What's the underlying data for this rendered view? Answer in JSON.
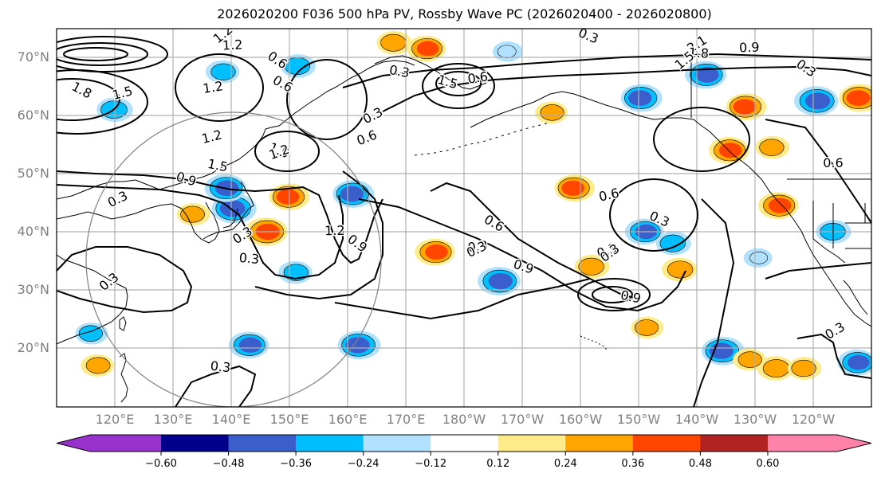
{
  "title": "2026020200 F036 500 hPa PV, Rossby Wave PC (2026020400 - 2026020800)",
  "map": {
    "projection": "PlateCarree",
    "lat_labels": [
      "70°N",
      "60°N",
      "50°N",
      "40°N",
      "30°N",
      "20°N"
    ],
    "lat_values": [
      70,
      60,
      50,
      40,
      30,
      20
    ],
    "lon_labels": [
      "120°E",
      "130°E",
      "140°E",
      "150°E",
      "160°E",
      "170°E",
      "180°W",
      "170°W",
      "160°W",
      "150°W",
      "140°W",
      "130°W",
      "120°W"
    ],
    "lon_values": [
      120,
      130,
      140,
      150,
      160,
      170,
      180,
      190,
      200,
      210,
      220,
      230,
      240
    ],
    "lon_range": [
      110,
      250
    ],
    "lat_range": [
      10,
      75
    ],
    "grid_color": "#b0b0b0",
    "contour_labels": [
      "1.2",
      "1.2",
      "0.6",
      "1.2",
      "1.8",
      "1.5",
      "0.3",
      "0.6",
      "1.5",
      "0.3",
      "0.3",
      "2.1",
      "1.8",
      "1.5",
      "0.9",
      "0.3",
      "0.6",
      "0.6",
      "1.2",
      "1.5",
      "1.2",
      "0.9",
      "0.3",
      "1.5",
      "0.3",
      "0.3",
      "0.3",
      "1.2",
      "0.9",
      "0.3",
      "0.6",
      "0.6",
      "0.3",
      "0.3",
      "0.9",
      "0.3",
      "0.9",
      "0.3",
      "0.3",
      "0.3",
      "0.6"
    ]
  },
  "colorbar": {
    "ticks": [
      "−0.60",
      "−0.48",
      "−0.36",
      "−0.24",
      "−0.12",
      "0.12",
      "0.24",
      "0.36",
      "0.48",
      "0.60"
    ],
    "tick_values": [
      -0.6,
      -0.48,
      -0.36,
      -0.24,
      -0.12,
      0.12,
      0.24,
      0.36,
      0.48,
      0.6
    ],
    "colors": [
      "#9932cc",
      "#00008b",
      "#3a5fcd",
      "#00bfff",
      "#b0e2ff",
      "#ffffff",
      "#ffeb8a",
      "#ffa500",
      "#ff4500",
      "#b22222",
      "#ff82ab"
    ]
  },
  "anomalies": [
    {
      "lon": 140.5,
      "lat": 44,
      "value": -0.45
    },
    {
      "lon": 139,
      "lat": 47.5,
      "value": -0.4
    },
    {
      "lon": 150,
      "lat": 46,
      "value": 0.38
    },
    {
      "lon": 146,
      "lat": 40,
      "value": 0.42
    },
    {
      "lon": 161,
      "lat": 46.5,
      "value": -0.4
    },
    {
      "lon": 151,
      "lat": 33,
      "value": -0.28
    },
    {
      "lon": 133.5,
      "lat": 43,
      "value": 0.27
    },
    {
      "lon": 143,
      "lat": 20.5,
      "value": -0.38
    },
    {
      "lon": 162,
      "lat": 20.5,
      "value": -0.42
    },
    {
      "lon": 117,
      "lat": 17,
      "value": 0.27
    },
    {
      "lon": 116,
      "lat": 22.5,
      "value": -0.26
    },
    {
      "lon": 173.5,
      "lat": 71.5,
      "value": 0.36
    },
    {
      "lon": 168,
      "lat": 72.5,
      "value": 0.3
    },
    {
      "lon": 175,
      "lat": 36.5,
      "value": 0.38
    },
    {
      "lon": 199,
      "lat": 47.5,
      "value": 0.38
    },
    {
      "lon": 211,
      "lat": 40,
      "value": -0.36
    },
    {
      "lon": 202,
      "lat": 34,
      "value": 0.3
    },
    {
      "lon": 186,
      "lat": 31.5,
      "value": -0.42
    },
    {
      "lon": 216,
      "lat": 38,
      "value": -0.3
    },
    {
      "lon": 217,
      "lat": 33.5,
      "value": 0.3
    },
    {
      "lon": 210.5,
      "lat": 63,
      "value": -0.4
    },
    {
      "lon": 221.5,
      "lat": 67,
      "value": -0.4
    },
    {
      "lon": 228.5,
      "lat": 61.5,
      "value": 0.38
    },
    {
      "lon": 225.5,
      "lat": 54,
      "value": 0.38
    },
    {
      "lon": 233,
      "lat": 54.5,
      "value": 0.28
    },
    {
      "lon": 240.5,
      "lat": 62.5,
      "value": -0.44
    },
    {
      "lon": 248,
      "lat": 63,
      "value": 0.4
    },
    {
      "lon": 234,
      "lat": 44.5,
      "value": 0.38
    },
    {
      "lon": 243.5,
      "lat": 40,
      "value": -0.3
    },
    {
      "lon": 230.5,
      "lat": 35.5,
      "value": -0.2
    },
    {
      "lon": 224.5,
      "lat": 19.5,
      "value": -0.42
    },
    {
      "lon": 233.5,
      "lat": 16.5,
      "value": 0.32
    },
    {
      "lon": 238.5,
      "lat": 16.5,
      "value": 0.28
    },
    {
      "lon": 247.5,
      "lat": 17.5,
      "value": -0.36
    },
    {
      "lon": 211.5,
      "lat": 23.5,
      "value": 0.26
    },
    {
      "lon": 229,
      "lat": 18,
      "value": 0.26
    },
    {
      "lon": 151.5,
      "lat": 68.5,
      "value": -0.3
    },
    {
      "lon": 138.5,
      "lat": 67.5,
      "value": -0.28
    },
    {
      "lon": 120,
      "lat": 61,
      "value": -0.32
    },
    {
      "lon": 195,
      "lat": 60.5,
      "value": 0.26
    },
    {
      "lon": 187.5,
      "lat": 71,
      "value": -0.22
    }
  ]
}
